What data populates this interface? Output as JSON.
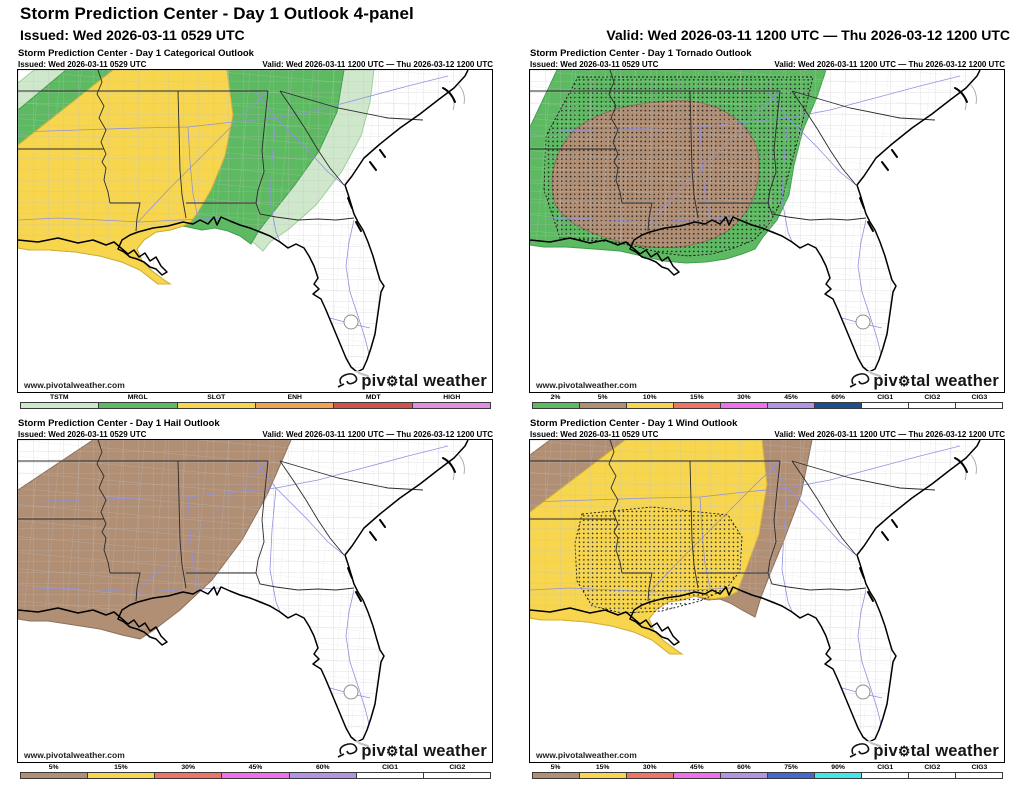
{
  "header": {
    "title": "Storm Prediction Center - Day 1 Outlook 4-panel",
    "issued": "Issued: Wed 2026-03-11 0529 UTC",
    "valid": "Valid: Wed 2026-03-11 1200 UTC — Thu 2026-03-12 1200 UTC"
  },
  "branding": {
    "url": "www.pivotalweather.com",
    "logo": {
      "pre": "piv",
      "gear": "⚙",
      "post": "tal weather"
    }
  },
  "panels": [
    {
      "id": "categorical",
      "title": "Storm Prediction Center - Day 1 Categorical Outlook",
      "issued": "Issued: Wed 2026-03-11 0529 UTC",
      "valid": "Valid: Wed 2026-03-11 1200 UTC — Thu 2026-03-12 1200 UTC",
      "legend": [
        {
          "label": "TSTM",
          "color": "#cfe8cb"
        },
        {
          "label": "MRGL",
          "color": "#5eba62"
        },
        {
          "label": "SLGT",
          "color": "#f7d64e"
        },
        {
          "label": "ENH",
          "color": "#f0a24f"
        },
        {
          "label": "MDT",
          "color": "#d0524a"
        },
        {
          "label": "HIGH",
          "color": "#e18ee1"
        }
      ],
      "overlays": [
        {
          "name": "general-thunderstorm-area",
          "level": "TSTM",
          "shape": "cat_tstm",
          "color": "#cfe8cb",
          "edge": "#9ccf9a"
        },
        {
          "name": "marginal-risk-area",
          "level": "MRGL",
          "shape": "cat_mrgl",
          "color": "#5eba62",
          "edge": "#3f9e4d"
        },
        {
          "name": "slight-risk-area",
          "level": "SLGT",
          "shape": "cat_slgt",
          "color": "#f7d64e",
          "edge": "#d8b032"
        }
      ]
    },
    {
      "id": "tornado",
      "title": "Storm Prediction Center - Day 1 Tornado Outlook",
      "issued": "Issued: Wed 2026-03-11 0529 UTC",
      "valid": "Valid: Wed 2026-03-11 1200 UTC — Thu 2026-03-12 1200 UTC",
      "legend": [
        {
          "label": "2%",
          "color": "#5eba62"
        },
        {
          "label": "5%",
          "color": "#b18f75"
        },
        {
          "label": "10%",
          "color": "#f7d64e"
        },
        {
          "label": "15%",
          "color": "#ef7465"
        },
        {
          "label": "30%",
          "color": "#ee70ee"
        },
        {
          "label": "45%",
          "color": "#b295e2"
        },
        {
          "label": "60%",
          "color": "#1d4e90"
        },
        {
          "label": "CIG1",
          "pattern": "dots"
        },
        {
          "label": "CIG2",
          "pattern": "hatch"
        },
        {
          "label": "CIG3",
          "pattern": "rings"
        }
      ],
      "overlays": [
        {
          "name": "tornado-2pct-area",
          "level": "2%",
          "shape": "tor_2",
          "color": "#5eba62",
          "edge": "#3f9e4d"
        },
        {
          "name": "tornado-5pct-area",
          "level": "5%",
          "shape": "tor_5",
          "color": "#b18f75",
          "edge": "#8d7058"
        },
        {
          "name": "tornado-sig-area",
          "level": "CIG1",
          "shape": "tor_sig",
          "pattern": "dots"
        }
      ]
    },
    {
      "id": "hail",
      "title": "Storm Prediction Center - Day 1 Hail Outlook",
      "issued": "Issued: Wed 2026-03-11 0529 UTC",
      "valid": "Valid: Wed 2026-03-11 1200 UTC — Thu 2026-03-12 1200 UTC",
      "legend": [
        {
          "label": "5%",
          "color": "#b18f75"
        },
        {
          "label": "15%",
          "color": "#f7d64e"
        },
        {
          "label": "30%",
          "color": "#ef7465"
        },
        {
          "label": "45%",
          "color": "#ee70ee"
        },
        {
          "label": "60%",
          "color": "#b295e2"
        },
        {
          "label": "CIG1",
          "pattern": "dots"
        },
        {
          "label": "CIG2",
          "pattern": "hatch"
        }
      ],
      "overlays": [
        {
          "name": "hail-5pct-area",
          "level": "5%",
          "shape": "hail_5",
          "color": "#b18f75",
          "edge": "#8d7058"
        }
      ]
    },
    {
      "id": "wind",
      "title": "Storm Prediction Center - Day 1 Wind Outlook",
      "issued": "Issued: Wed 2026-03-11 0529 UTC",
      "valid": "Valid: Wed 2026-03-11 1200 UTC — Thu 2026-03-12 1200 UTC",
      "legend": [
        {
          "label": "5%",
          "color": "#b18f75"
        },
        {
          "label": "15%",
          "color": "#f7d64e"
        },
        {
          "label": "30%",
          "color": "#ef7465"
        },
        {
          "label": "45%",
          "color": "#ee70ee"
        },
        {
          "label": "60%",
          "color": "#b295e2"
        },
        {
          "label": "75%",
          "color": "#4467d0"
        },
        {
          "label": "90%",
          "color": "#45e6ea"
        },
        {
          "label": "CIG1",
          "pattern": "dots"
        },
        {
          "label": "CIG2",
          "pattern": "hatch"
        },
        {
          "label": "CIG3",
          "pattern": "rings"
        }
      ],
      "overlays": [
        {
          "name": "wind-5pct-area",
          "level": "5%",
          "shape": "wind_5",
          "color": "#b18f75",
          "edge": "#8d7058"
        },
        {
          "name": "wind-15pct-area",
          "level": "15%",
          "shape": "wind_15",
          "color": "#f7d64e",
          "edge": "#d8b032"
        },
        {
          "name": "wind-sig-area",
          "level": "CIG1",
          "shape": "wind_sig",
          "pattern": "dots"
        }
      ]
    }
  ]
}
